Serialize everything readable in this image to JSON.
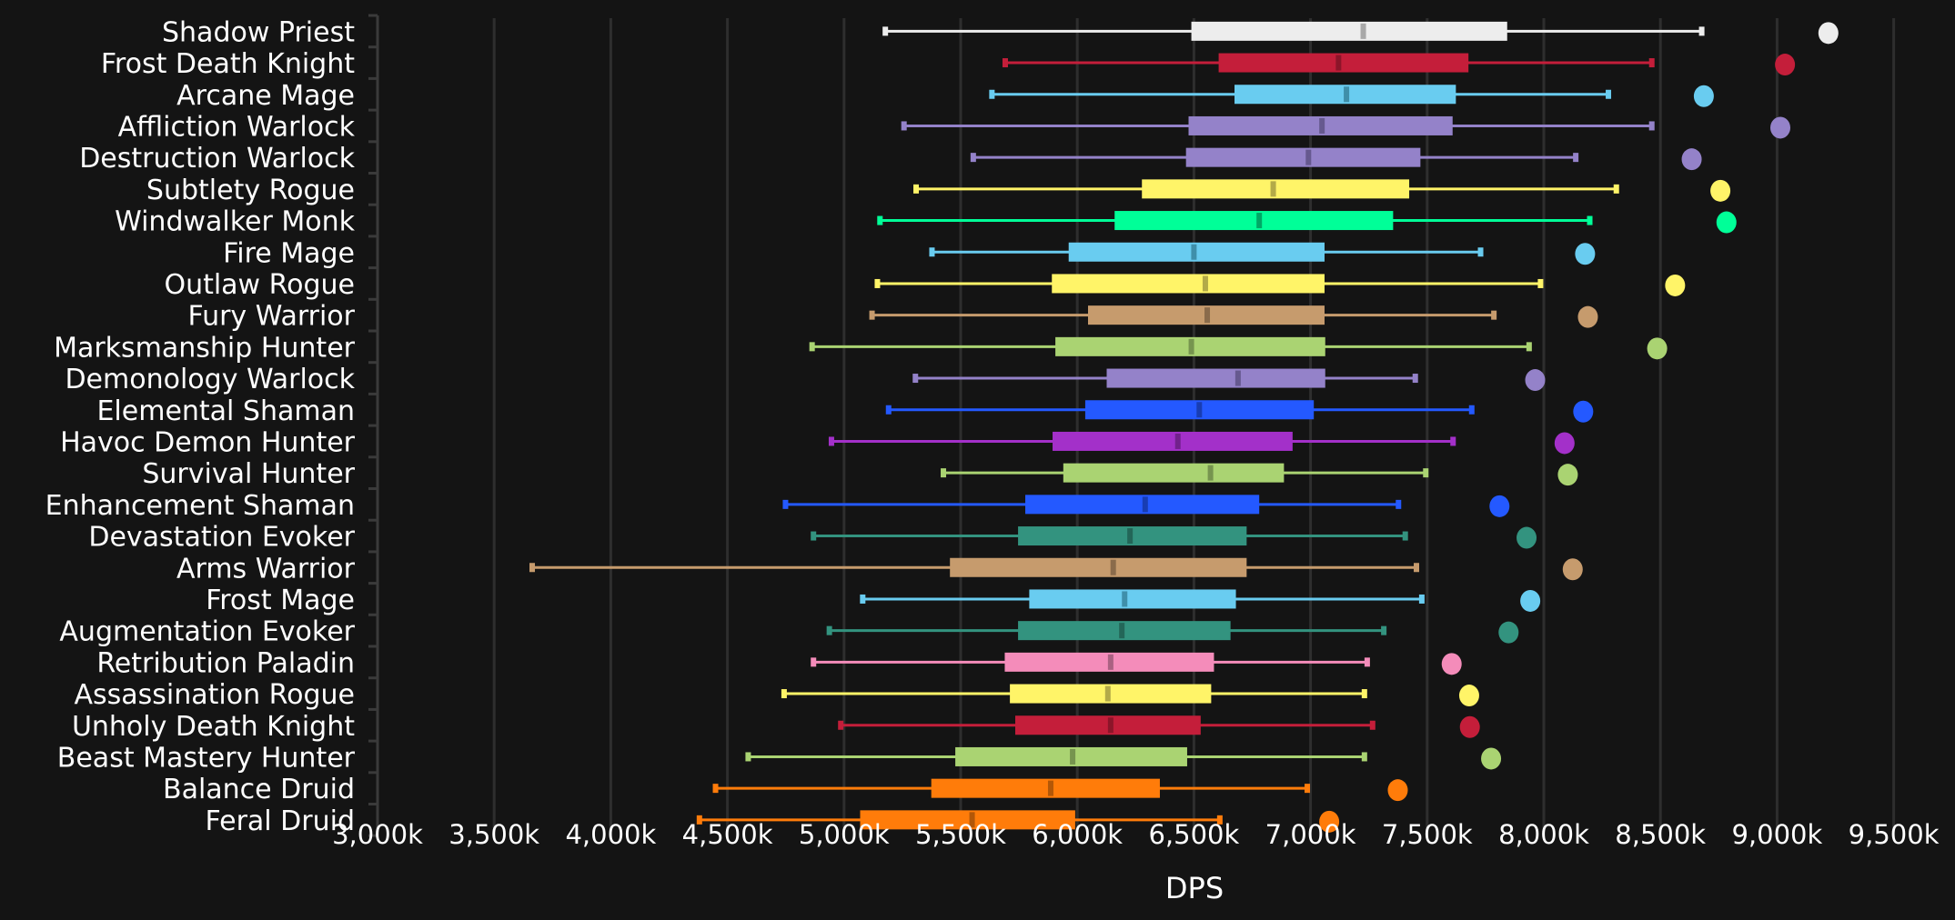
{
  "chart_data": {
    "type": "boxplot",
    "title": "",
    "xlabel": "DPS",
    "ylabel": "",
    "xlim": [
      3000,
      9500
    ],
    "x_unit_suffix": "k",
    "x_ticks": [
      3000,
      3500,
      4000,
      4500,
      5000,
      5500,
      6000,
      6500,
      7000,
      7500,
      8000,
      8500,
      9000,
      9500
    ],
    "x_tick_labels": [
      "3,000k",
      "3,500k",
      "4,000k",
      "4,500k",
      "5,000k",
      "5,500k",
      "6,000k",
      "6,500k",
      "7,000k",
      "7,500k",
      "8,000k",
      "8,500k",
      "9,000k",
      "9,500k"
    ],
    "grid": "vertical",
    "legend": "none",
    "series": [
      {
        "name": "Shadow Priest",
        "color": "#ededed",
        "median_color": "#a8a8a8",
        "min": 5177,
        "q1": 6489,
        "median": 7226,
        "q3": 7843,
        "max": 8677,
        "top": 9220
      },
      {
        "name": "Frost Death Knight",
        "color": "#c41e3a",
        "median_color": "#8c1529",
        "min": 5691,
        "q1": 6606,
        "median": 7120,
        "q3": 7677,
        "max": 8463,
        "top": 9034
      },
      {
        "name": "Arcane Mage",
        "color": "#69ccf0",
        "median_color": "#3f8faa",
        "min": 5634,
        "q1": 6674,
        "median": 7154,
        "q3": 7623,
        "max": 8277,
        "top": 8686
      },
      {
        "name": "Affliction Warlock",
        "color": "#9482c9",
        "median_color": "#66598f",
        "min": 5257,
        "q1": 6477,
        "median": 7049,
        "q3": 7609,
        "max": 8463,
        "top": 9014
      },
      {
        "name": "Destruction Warlock",
        "color": "#9482c9",
        "median_color": "#66598f",
        "min": 5554,
        "q1": 6466,
        "median": 6991,
        "q3": 7471,
        "max": 8137,
        "top": 8634
      },
      {
        "name": "Subtlety Rogue",
        "color": "#fff468",
        "median_color": "#b3aa48",
        "min": 5309,
        "q1": 6277,
        "median": 6840,
        "q3": 7423,
        "max": 8311,
        "top": 8757
      },
      {
        "name": "Windwalker Monk",
        "color": "#00ff98",
        "median_color": "#00a865",
        "min": 5154,
        "q1": 6160,
        "median": 6780,
        "q3": 7354,
        "max": 8197,
        "top": 8783
      },
      {
        "name": "Fire Mage",
        "color": "#69ccf0",
        "median_color": "#3f8faa",
        "min": 5377,
        "q1": 5963,
        "median": 6500,
        "q3": 7060,
        "max": 7729,
        "top": 8177
      },
      {
        "name": "Outlaw Rogue",
        "color": "#fff468",
        "median_color": "#b3aa48",
        "min": 5143,
        "q1": 5891,
        "median": 6549,
        "q3": 7060,
        "max": 7986,
        "top": 8563
      },
      {
        "name": "Fury Warrior",
        "color": "#c69b6d",
        "median_color": "#8a6b4b",
        "min": 5120,
        "q1": 6046,
        "median": 6557,
        "q3": 7060,
        "max": 7786,
        "top": 8189
      },
      {
        "name": "Marksmanship Hunter",
        "color": "#aad372",
        "median_color": "#76944f",
        "min": 4863,
        "q1": 5906,
        "median": 6489,
        "q3": 7063,
        "max": 7937,
        "top": 8486
      },
      {
        "name": "Demonology Warlock",
        "color": "#9482c9",
        "median_color": "#66598f",
        "min": 5306,
        "q1": 6126,
        "median": 6689,
        "q3": 7063,
        "max": 7449,
        "top": 7963
      },
      {
        "name": "Elemental Shaman",
        "color": "#2459ff",
        "median_color": "#183db3",
        "min": 5191,
        "q1": 6034,
        "median": 6523,
        "q3": 7014,
        "max": 7691,
        "top": 8169
      },
      {
        "name": "Havoc Demon Hunter",
        "color": "#a330c9",
        "median_color": "#72218c",
        "min": 4946,
        "q1": 5894,
        "median": 6431,
        "q3": 6923,
        "max": 7611,
        "top": 8089
      },
      {
        "name": "Survival Hunter",
        "color": "#aad372",
        "median_color": "#76944f",
        "min": 5426,
        "q1": 5940,
        "median": 6571,
        "q3": 6886,
        "max": 7494,
        "top": 8103
      },
      {
        "name": "Enhancement Shaman",
        "color": "#2459ff",
        "median_color": "#183db3",
        "min": 4749,
        "q1": 5777,
        "median": 6291,
        "q3": 6780,
        "max": 7377,
        "top": 7810
      },
      {
        "name": "Devastation Evoker",
        "color": "#33937f",
        "median_color": "#236658",
        "min": 4869,
        "q1": 5746,
        "median": 6226,
        "q3": 6726,
        "max": 7406,
        "top": 7926
      },
      {
        "name": "Arms Warrior",
        "color": "#c69b6d",
        "median_color": "#8a6b4b",
        "min": 3663,
        "q1": 5454,
        "median": 6154,
        "q3": 6726,
        "max": 7454,
        "top": 8124
      },
      {
        "name": "Frost Mage",
        "color": "#69ccf0",
        "median_color": "#3f8faa",
        "min": 5080,
        "q1": 5794,
        "median": 6203,
        "q3": 6680,
        "max": 7477,
        "top": 7942
      },
      {
        "name": "Augmentation Evoker",
        "color": "#33937f",
        "median_color": "#236658",
        "min": 4937,
        "q1": 5746,
        "median": 6191,
        "q3": 6657,
        "max": 7314,
        "top": 7849
      },
      {
        "name": "Retribution Paladin",
        "color": "#f48cba",
        "median_color": "#aa6182",
        "min": 4869,
        "q1": 5689,
        "median": 6143,
        "q3": 6586,
        "max": 7243,
        "top": 7605
      },
      {
        "name": "Assassination Rogue",
        "color": "#fff468",
        "median_color": "#b3aa48",
        "min": 4743,
        "q1": 5711,
        "median": 6131,
        "q3": 6574,
        "max": 7231,
        "top": 7680
      },
      {
        "name": "Unholy Death Knight",
        "color": "#c41e3a",
        "median_color": "#8c1529",
        "min": 4986,
        "q1": 5734,
        "median": 6143,
        "q3": 6529,
        "max": 7266,
        "top": 7683
      },
      {
        "name": "Beast Mastery Hunter",
        "color": "#aad372",
        "median_color": "#76944f",
        "min": 4589,
        "q1": 5477,
        "median": 5980,
        "q3": 6471,
        "max": 7231,
        "top": 7774
      },
      {
        "name": "Balance Druid",
        "color": "#ff7c0a",
        "median_color": "#b35707",
        "min": 4449,
        "q1": 5374,
        "median": 5886,
        "q3": 6354,
        "max": 6986,
        "top": 7374
      },
      {
        "name": "Feral Druid",
        "color": "#ff7c0a",
        "median_color": "#b35707",
        "min": 4380,
        "q1": 5069,
        "median": 5549,
        "q3": 5991,
        "max": 6611,
        "top": 7080
      }
    ]
  },
  "colors": {
    "background": "#141414",
    "gridline": "#2e2e2e",
    "axis": "#3a3a3a",
    "text": "#ffffff"
  }
}
